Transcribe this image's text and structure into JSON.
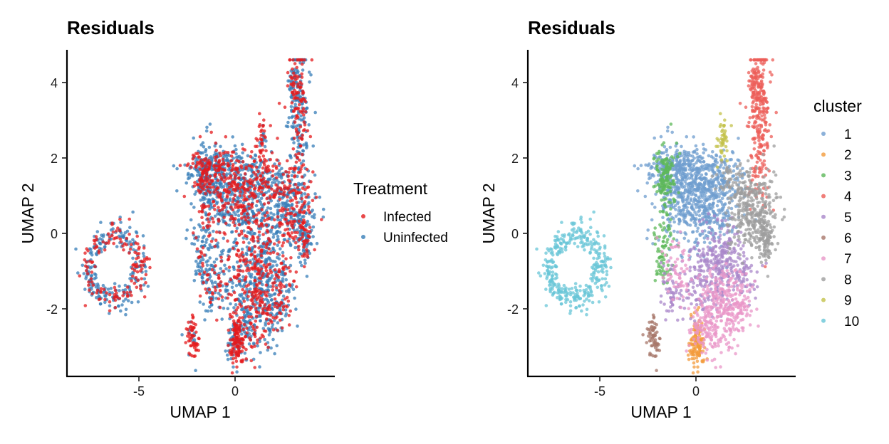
{
  "colors": {
    "Infected": "#E41A1C",
    "Uninfected": "#377EB8",
    "cluster": [
      "#6F9ECF",
      "#F39B3C",
      "#5DB85A",
      "#EC5E58",
      "#A987C9",
      "#A7776A",
      "#E997C8",
      "#9E9E9E",
      "#C3C24A",
      "#68C6D7"
    ]
  },
  "chart_data": [
    {
      "type": "scatter",
      "title": "Residuals",
      "xlabel": "UMAP 1",
      "ylabel": "UMAP 2",
      "xlim": [
        -8.5,
        4.8
      ],
      "ylim": [
        -3.8,
        4.9
      ],
      "xticks": [
        -5,
        0
      ],
      "yticks": [
        -2,
        0,
        2,
        4
      ],
      "grid": false,
      "legend": {
        "title": "Treatment",
        "position": "right",
        "entries": [
          "Infected",
          "Uninfected"
        ]
      },
      "series": [
        {
          "name": "Infected",
          "color": "#E41A1C"
        },
        {
          "name": "Uninfected",
          "color": "#377EB8"
        }
      ]
    },
    {
      "type": "scatter",
      "title": "Residuals",
      "xlabel": "UMAP 1",
      "ylabel": "UMAP 2",
      "xlim": [
        -8.5,
        4.8
      ],
      "ylim": [
        -3.8,
        4.9
      ],
      "xticks": [
        -5,
        0
      ],
      "yticks": [
        -2,
        0,
        2,
        4
      ],
      "grid": false,
      "legend": {
        "title": "cluster",
        "position": "right",
        "entries": [
          "1",
          "2",
          "3",
          "4",
          "5",
          "6",
          "7",
          "8",
          "9",
          "10"
        ]
      },
      "clusters": [
        {
          "name": "1",
          "center": [
            -0.2,
            1.2
          ]
        },
        {
          "name": "2",
          "center": [
            0.0,
            -2.9
          ]
        },
        {
          "name": "3",
          "center": [
            -1.6,
            0.8
          ]
        },
        {
          "name": "4",
          "center": [
            3.3,
            3.0
          ]
        },
        {
          "name": "5",
          "center": [
            1.2,
            -0.9
          ]
        },
        {
          "name": "6",
          "center": [
            -2.2,
            -2.8
          ]
        },
        {
          "name": "7",
          "center": [
            1.4,
            -1.9
          ]
        },
        {
          "name": "8",
          "center": [
            2.8,
            0.4
          ]
        },
        {
          "name": "9",
          "center": [
            1.4,
            2.5
          ]
        },
        {
          "name": "10",
          "center": [
            -6.3,
            -0.9
          ]
        }
      ]
    }
  ]
}
